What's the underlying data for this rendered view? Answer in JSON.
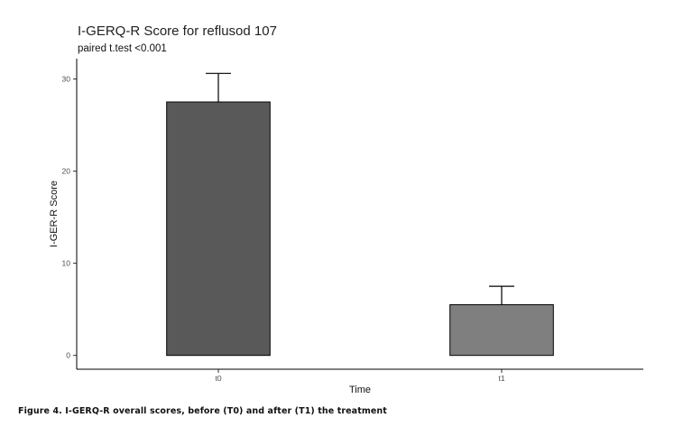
{
  "chart_data": {
    "type": "bar",
    "title": "I-GERQ-R Score for reflusod 107",
    "subtitle": "paired t.test <0.001",
    "xlabel": "Time",
    "ylabel": "I-GER-R Score",
    "categories": [
      "t0",
      "t1"
    ],
    "values": [
      27.5,
      5.5
    ],
    "error_upper": [
      30.6,
      7.5
    ],
    "bar_colors": [
      "#595959",
      "#7f7f7f"
    ],
    "ylim": [
      -1.5,
      32.2
    ],
    "yticks": [
      0,
      10,
      20,
      30
    ],
    "grid": false,
    "legend": "none"
  },
  "figure": {
    "caption": "Figure 4. I-GERQ-R overall scores, before (T0) and after (T1) the treatment"
  }
}
